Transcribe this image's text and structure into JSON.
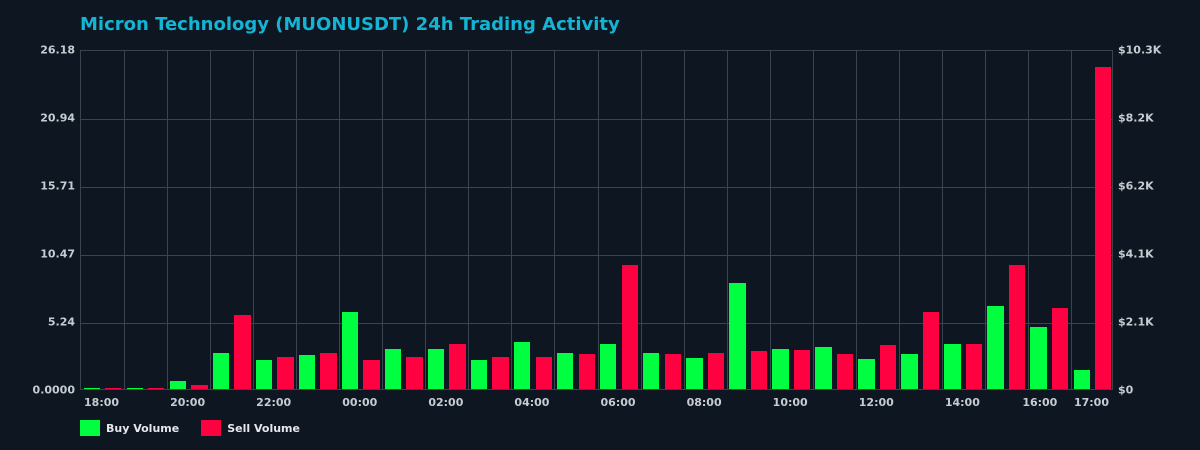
{
  "chart_data": {
    "type": "bar",
    "title": "Micron Technology (MUONUSDT) 24h Trading Activity",
    "xlabel": "",
    "ylabel": "",
    "ylim": [
      0,
      26.18
    ],
    "y_ticks_left": [
      "0.0000",
      "5.24",
      "10.47",
      "15.71",
      "20.94",
      "26.18"
    ],
    "y_ticks_right": [
      "$0",
      "$2.1K",
      "$4.1K",
      "$6.2K",
      "$8.2K",
      "$10.3K"
    ],
    "x_tick_labels": [
      {
        "label": "18:00",
        "slot": 0.5
      },
      {
        "label": "20:00",
        "slot": 2.5
      },
      {
        "label": "22:00",
        "slot": 4.5
      },
      {
        "label": "00:00",
        "slot": 6.5
      },
      {
        "label": "02:00",
        "slot": 8.5
      },
      {
        "label": "04:00",
        "slot": 10.5
      },
      {
        "label": "06:00",
        "slot": 12.5
      },
      {
        "label": "08:00",
        "slot": 14.5
      },
      {
        "label": "10:00",
        "slot": 16.5
      },
      {
        "label": "12:00",
        "slot": 18.5
      },
      {
        "label": "14:00",
        "slot": 20.5
      },
      {
        "label": "16:00",
        "slot": 22.3
      },
      {
        "label": "17:00",
        "slot": 23.5
      }
    ],
    "categories": [
      "18:00",
      "19:00",
      "20:00",
      "21:00",
      "22:00",
      "23:00",
      "00:00",
      "01:00",
      "02:00",
      "03:00",
      "04:00",
      "05:00",
      "06:00",
      "07:00",
      "08:00",
      "09:00",
      "10:00",
      "11:00",
      "12:00",
      "13:00",
      "14:00",
      "15:00",
      "16:00",
      "17:00"
    ],
    "series": [
      {
        "name": "Buy Volume",
        "color": "#00ff41",
        "values": [
          0.05,
          0.05,
          0.6,
          2.8,
          2.2,
          2.6,
          5.9,
          3.1,
          3.1,
          2.2,
          3.6,
          2.8,
          3.5,
          2.8,
          2.4,
          8.2,
          3.1,
          3.2,
          2.3,
          2.7,
          3.5,
          6.4,
          4.8,
          1.5
        ]
      },
      {
        "name": "Sell Volume",
        "color": "#ff0040",
        "values": [
          0.05,
          0.05,
          0.3,
          5.7,
          2.5,
          2.8,
          2.2,
          2.5,
          3.5,
          2.5,
          2.5,
          2.7,
          9.55,
          2.7,
          2.8,
          2.9,
          3.0,
          2.7,
          3.4,
          5.9,
          3.5,
          9.55,
          6.2,
          24.8
        ]
      }
    ],
    "grid": true,
    "legend_position": "bottom-left"
  },
  "legend": {
    "buy_label": "Buy Volume",
    "sell_label": "Sell Volume"
  },
  "colors": {
    "background": "#0d1621",
    "title": "#14b4d4",
    "buy": "#00ff41",
    "sell": "#ff0040",
    "grid": "#3a4350"
  }
}
